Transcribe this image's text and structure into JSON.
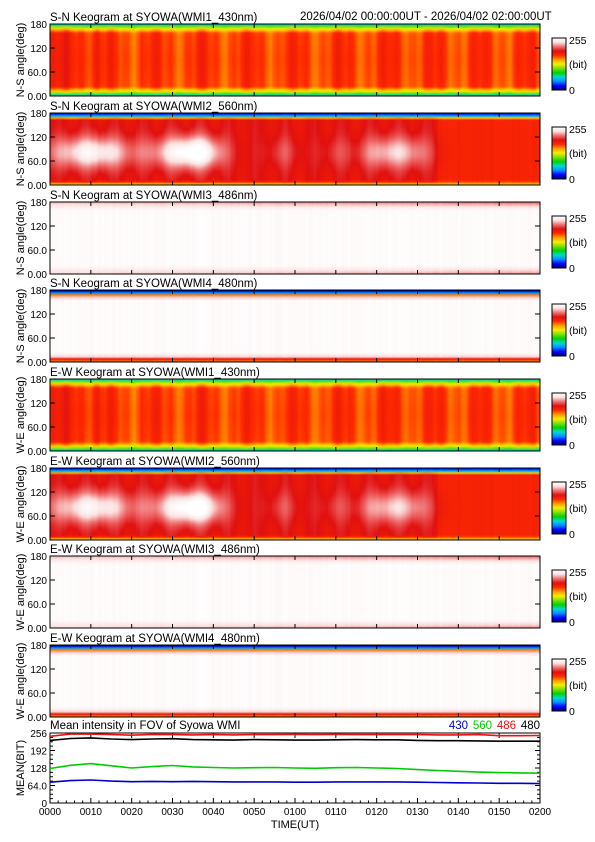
{
  "header": {
    "time_range": "2026/04/02 00:00:00UT - 2026/04/02 02:00:00UT"
  },
  "colorbar": {
    "max_label": "255",
    "unit_label": "(bit)",
    "min_label": "0",
    "colors": [
      "#00006e",
      "#0000ff",
      "#0090ff",
      "#00d8d8",
      "#00d200",
      "#7ee000",
      "#f5ef00",
      "#ffa000",
      "#ff2a00",
      "#e01010",
      "#f07070",
      "#fbe1e1",
      "#ffffff"
    ]
  },
  "keogram_axis": {
    "ticks": [
      "0.00",
      "60.0",
      "120",
      "180"
    ]
  },
  "x_axis": {
    "label": "TIME(UT)",
    "ticks": [
      "0000",
      "0010",
      "0020",
      "0030",
      "0040",
      "0050",
      "0100",
      "0110",
      "0120",
      "0130",
      "0140",
      "0150",
      "0200"
    ]
  },
  "panels": [
    {
      "title": "S-N Keogram at SYOWA(WMI1_430nm)",
      "ylabel": "N-S angle(deg)",
      "profile": "green"
    },
    {
      "title": "S-N Keogram at SYOWA(WMI2_560nm)",
      "ylabel": "N-S angle(deg)",
      "profile": "aurora"
    },
    {
      "title": "S-N Keogram at SYOWA(WMI3_486nm)",
      "ylabel": "N-S angle(deg)",
      "profile": "white"
    },
    {
      "title": "S-N Keogram at SYOWA(WMI4_480nm)",
      "ylabel": "N-S angle(deg)",
      "profile": "white_edges"
    },
    {
      "title": "E-W Keogram at SYOWA(WMI1_430nm)",
      "ylabel": "W-E angle(deg)",
      "profile": "green"
    },
    {
      "title": "E-W Keogram at SYOWA(WMI2_560nm)",
      "ylabel": "W-E angle(deg)",
      "profile": "aurora"
    },
    {
      "title": "E-W Keogram at SYOWA(WMI3_486nm)",
      "ylabel": "W-E angle(deg)",
      "profile": "white"
    },
    {
      "title": "E-W Keogram at SYOWA(WMI4_480nm)",
      "ylabel": "W-E angle(deg)",
      "profile": "white_edges"
    }
  ],
  "chart_data": {
    "type": "line",
    "title": "Mean intensity in FOV of Syowa WMI",
    "xlabel": "TIME(UT)",
    "ylabel": "MEAN(BIT)",
    "x_ticks": [
      "0000",
      "0010",
      "0020",
      "0030",
      "0040",
      "0050",
      "0100",
      "0110",
      "0120",
      "0130",
      "0140",
      "0150",
      "0200"
    ],
    "y_ticks": [
      "0",
      "64.0",
      "128",
      "192",
      "256"
    ],
    "ylim": [
      0,
      256
    ],
    "xlim_minutes": [
      0,
      120
    ],
    "x": [
      0,
      5,
      10,
      15,
      20,
      25,
      30,
      35,
      40,
      45,
      50,
      55,
      60,
      65,
      70,
      75,
      80,
      85,
      90,
      95,
      100,
      105,
      110,
      115,
      120
    ],
    "series": [
      {
        "name": "430",
        "color": "#0000cc",
        "values": [
          76,
          82,
          84,
          80,
          78,
          79,
          78,
          79,
          78,
          77,
          77,
          77,
          76,
          76,
          77,
          77,
          77,
          77,
          76,
          75,
          74,
          73,
          72,
          72,
          71
        ]
      },
      {
        "name": "560",
        "color": "#00cc00",
        "values": [
          126,
          138,
          144,
          136,
          128,
          133,
          137,
          132,
          130,
          128,
          129,
          130,
          128,
          127,
          129,
          130,
          128,
          126,
          122,
          119,
          116,
          113,
          111,
          110,
          109
        ]
      },
      {
        "name": "486",
        "color": "#ee1111",
        "values": [
          244,
          252,
          252,
          250,
          248,
          251,
          250,
          249,
          250,
          249,
          250,
          250,
          251,
          250,
          251,
          250,
          250,
          250,
          250,
          249,
          249,
          250,
          246,
          246,
          247
        ]
      },
      {
        "name": "480",
        "color": "#000000",
        "values": [
          229,
          236,
          238,
          234,
          232,
          234,
          235,
          232,
          231,
          230,
          232,
          231,
          230,
          230,
          231,
          232,
          231,
          231,
          229,
          228,
          228,
          227,
          226,
          226,
          226
        ]
      }
    ]
  }
}
